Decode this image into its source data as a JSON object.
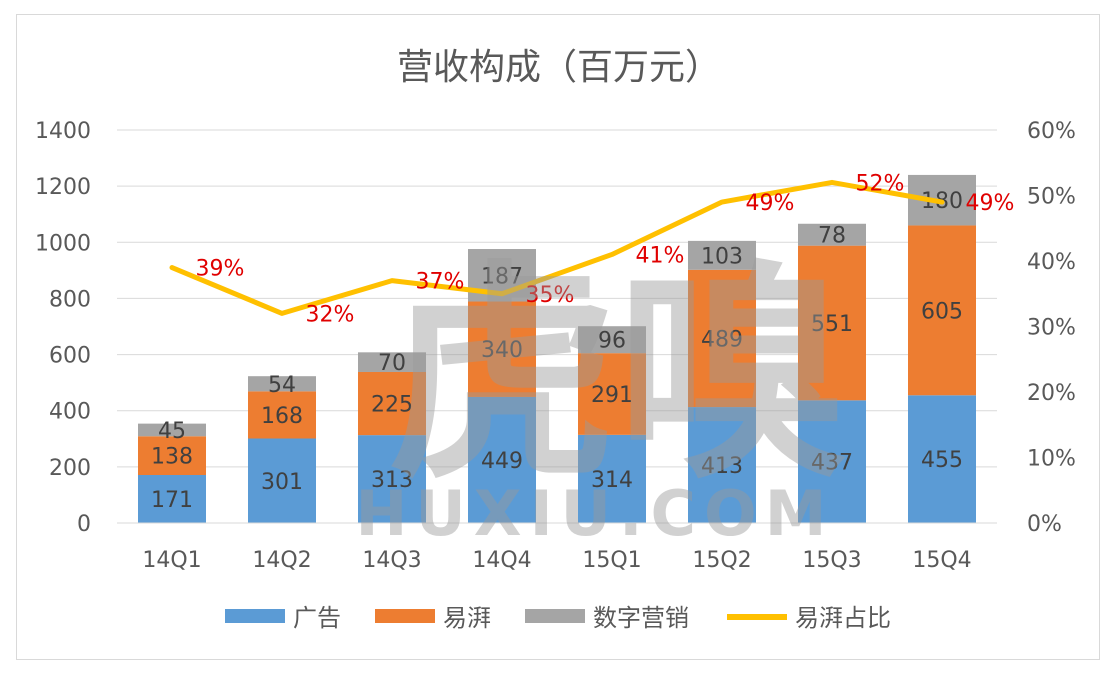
{
  "chart_data": {
    "type": "bar",
    "stacked": true,
    "title": "营收构成（百万元）",
    "categories": [
      "14Q1",
      "14Q2",
      "14Q3",
      "14Q4",
      "15Q1",
      "15Q2",
      "15Q3",
      "15Q4"
    ],
    "series": [
      {
        "name": "广告",
        "values": [
          171,
          301,
          313,
          449,
          314,
          413,
          437,
          455
        ],
        "color": "#5b9bd5"
      },
      {
        "name": "易湃",
        "values": [
          138,
          168,
          225,
          340,
          291,
          489,
          551,
          605
        ],
        "color": "#ed7d31"
      },
      {
        "name": "数字营销",
        "values": [
          45,
          54,
          70,
          187,
          96,
          103,
          78,
          180
        ],
        "color": "#a5a5a5"
      }
    ],
    "line": {
      "name": "易湃占比",
      "values": [
        39,
        32,
        37,
        35,
        41,
        49,
        52,
        49
      ],
      "labels": [
        "39%",
        "32%",
        "37%",
        "35%",
        "41%",
        "49%",
        "52%",
        "49%"
      ],
      "color": "#ffc000",
      "label_color": "#e00000"
    },
    "ylim": [
      0,
      1400
    ],
    "yticks": [
      "0",
      "200",
      "400",
      "600",
      "800",
      "1000",
      "1200",
      "1400"
    ],
    "y2lim": [
      0,
      60
    ],
    "y2ticks": [
      "0%",
      "10%",
      "20%",
      "30%",
      "40%",
      "50%",
      "60%"
    ],
    "grid": true,
    "legend_position": "bottom"
  },
  "watermark": {
    "main": "虎嗅",
    "sub": "HUXIU.COM"
  }
}
